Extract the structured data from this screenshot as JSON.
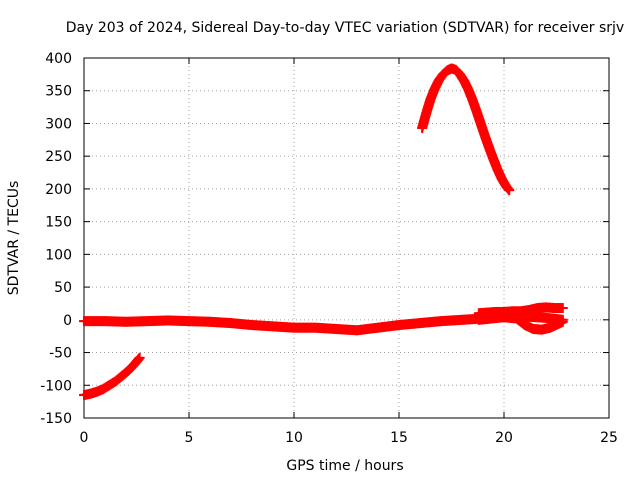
{
  "chart_data": {
    "type": "scatter",
    "title": "Day 203 of 2024, Sidereal Day-to-day VTEC variation (SDTVAR) for receiver srjv",
    "xlabel": "GPS time / hours",
    "ylabel": "SDTVAR / TECUs",
    "xlim": [
      0,
      25
    ],
    "ylim": [
      -150,
      400
    ],
    "xticks": [
      0,
      5,
      10,
      15,
      20,
      25
    ],
    "yticks": [
      -150,
      -100,
      -50,
      0,
      50,
      100,
      150,
      200,
      250,
      300,
      350,
      400
    ],
    "grid": true,
    "marker_color": "#ff0000",
    "series": [
      {
        "segment": "early-negative-arc",
        "x": [
          0.0,
          0.3,
          0.6,
          0.9,
          1.2,
          1.5,
          1.8,
          2.1,
          2.4,
          2.65
        ],
        "y": [
          -115,
          -113,
          -110,
          -106,
          -100,
          -94,
          -86,
          -78,
          -68,
          -58
        ]
      },
      {
        "segment": "near-zero-band",
        "x": [
          0.0,
          1.0,
          2.0,
          3.0,
          4.0,
          5.0,
          6.0,
          7.0,
          8.0,
          9.0,
          10.0,
          11.0,
          12.0,
          13.0,
          14.0,
          15.0,
          16.0,
          17.0,
          18.0,
          19.0,
          20.0,
          21.0,
          22.0,
          22.8
        ],
        "y": [
          -2,
          -2,
          -3,
          -2,
          -1,
          -2,
          -3,
          -5,
          -8,
          -10,
          -12,
          -12,
          -14,
          -16,
          -12,
          -8,
          -5,
          -2,
          0,
          2,
          5,
          5,
          3,
          0
        ]
      },
      {
        "segment": "late-scatter-upper",
        "x": [
          18.8,
          19.2,
          19.6,
          20.0,
          20.4,
          20.8,
          21.2,
          21.6,
          22.0,
          22.4,
          22.8
        ],
        "y": [
          10,
          11,
          12,
          12,
          13,
          13,
          15,
          18,
          19,
          18,
          18
        ]
      },
      {
        "segment": "late-scatter-lower",
        "x": [
          18.8,
          19.4,
          20.0,
          20.6,
          21.0,
          21.4,
          21.8,
          22.2,
          22.6,
          22.8
        ],
        "y": [
          0,
          2,
          4,
          2,
          -8,
          -14,
          -15,
          -12,
          -6,
          -3
        ]
      },
      {
        "segment": "high-arc",
        "x": [
          16.1,
          16.3,
          16.5,
          16.7,
          16.9,
          17.1,
          17.3,
          17.5,
          17.7,
          17.9,
          18.1,
          18.3,
          18.5,
          18.7,
          18.9,
          19.1,
          19.3,
          19.5,
          19.7,
          19.9,
          20.1,
          20.25
        ],
        "y": [
          293,
          316,
          337,
          353,
          366,
          375,
          381,
          384,
          382,
          375,
          365,
          352,
          336,
          318,
          299,
          280,
          262,
          245,
          229,
          215,
          204,
          198
        ]
      }
    ]
  }
}
